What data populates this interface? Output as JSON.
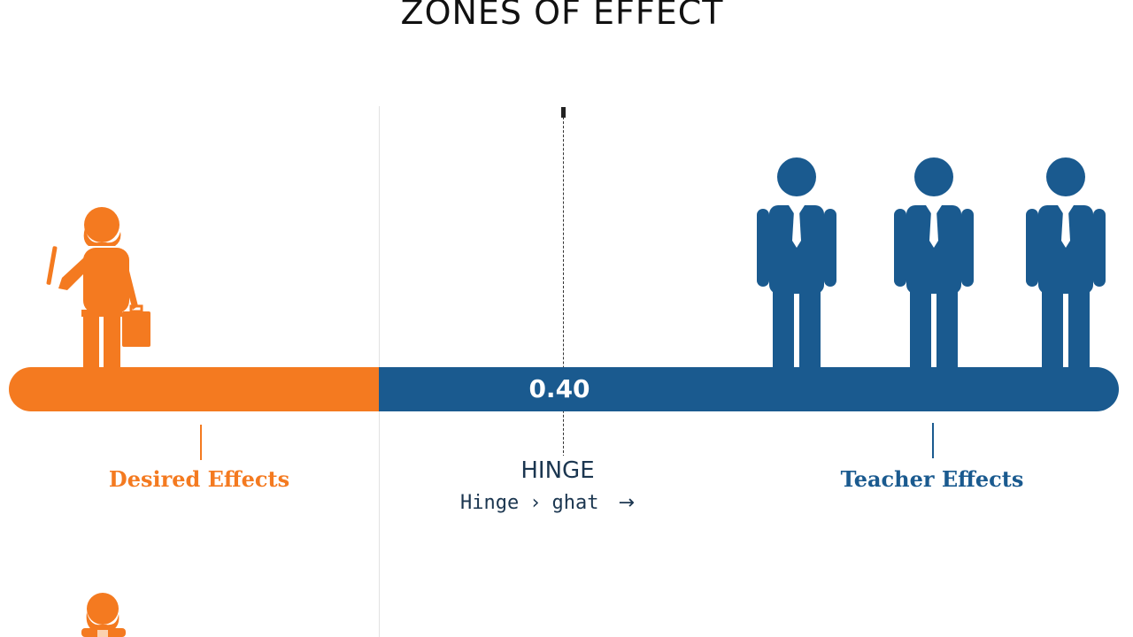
{
  "title": "ZONES OF EFFECT",
  "scale": {
    "hinge_value": "0.40"
  },
  "zones": {
    "left_label": "Desired Effects",
    "right_label": "Teacher Effects",
    "hinge_label": "HINGE",
    "hinge_sub": {
      "word1": "Hinge",
      "sep": "›",
      "word2": "ghat",
      "arrow": "→"
    }
  },
  "colors": {
    "orange": "#f47a20",
    "blue": "#1a5a8f",
    "dark": "#111111"
  },
  "icons": {
    "left_figure": "teacher-figure-icon",
    "right_figures": [
      "man-figure-icon",
      "man-figure-icon",
      "man-figure-icon"
    ],
    "bottom_figure": "teacher-figure-icon"
  }
}
